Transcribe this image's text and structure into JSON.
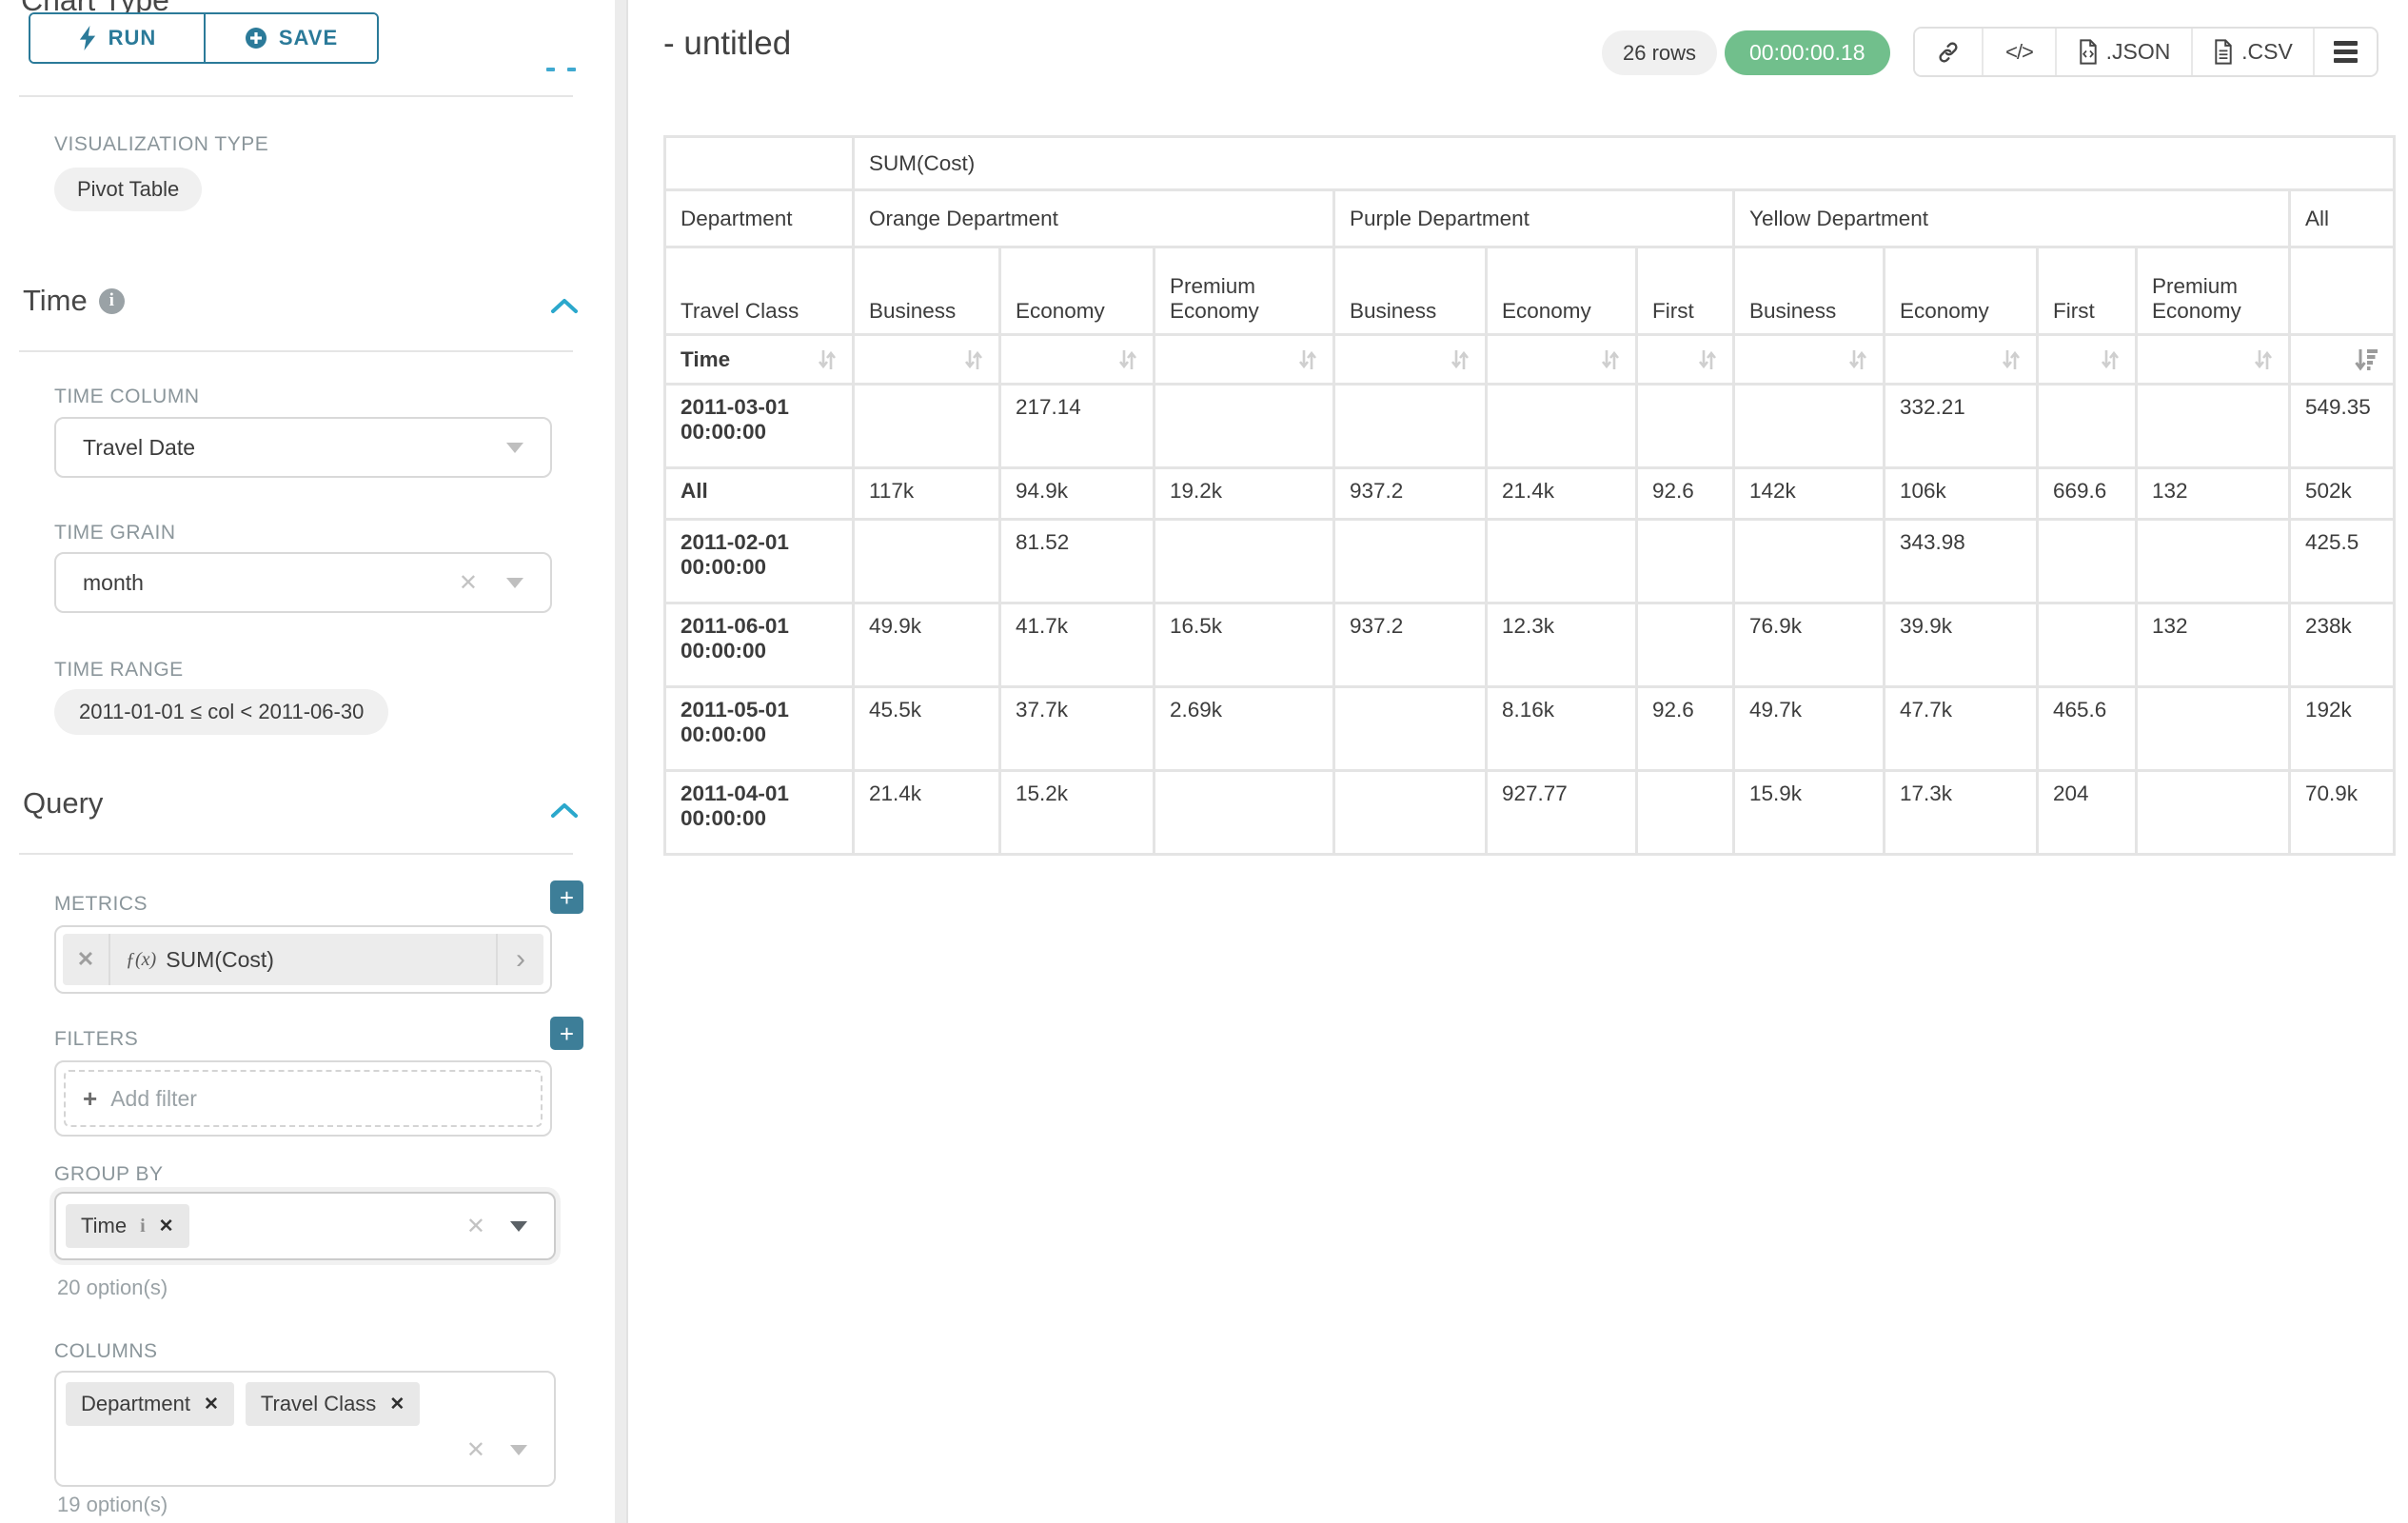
{
  "sidebar": {
    "run_label": "RUN",
    "save_label": "SAVE",
    "chart_type_heading": "Chart Type",
    "visualization_type_label": "VISUALIZATION TYPE",
    "visualization_type_value": "Pivot Table",
    "time_section": {
      "title": "Time",
      "time_column_label": "TIME COLUMN",
      "time_column_value": "Travel Date",
      "time_grain_label": "TIME GRAIN",
      "time_grain_value": "month",
      "time_range_label": "TIME RANGE",
      "time_range_value": "2011-01-01 ≤ col < 2011-06-30"
    },
    "query_section": {
      "title": "Query",
      "metrics_label": "METRICS",
      "metric_fx": "ƒ(x)",
      "metric_value": "SUM(Cost)",
      "filters_label": "FILTERS",
      "add_filter_label": "Add filter",
      "group_by_label": "GROUP BY",
      "group_by_tags": [
        "Time"
      ],
      "group_by_hint": "20 option(s)",
      "columns_label": "COLUMNS",
      "columns_tags": [
        "Department",
        "Travel Class"
      ],
      "columns_hint": "19 option(s)"
    }
  },
  "header": {
    "title": "- untitled",
    "row_count": "26 rows",
    "timer": "00:00:00.18",
    "export_json_label": ".JSON",
    "export_csv_label": ".CSV"
  },
  "pivot": {
    "metric_header": "SUM(Cost)",
    "corner_labels": [
      "Department",
      "Travel Class",
      "Time"
    ],
    "col_groups": [
      {
        "label": "Orange Department",
        "span": 3
      },
      {
        "label": "Purple Department",
        "span": 3
      },
      {
        "label": "Yellow Department",
        "span": 4
      },
      {
        "label": "All",
        "span": 1
      }
    ],
    "col_headers": [
      "Business",
      "Economy",
      "Premium Economy",
      "Business",
      "Economy",
      "First",
      "Business",
      "Economy",
      "First",
      "Premium Economy",
      ""
    ],
    "rows": [
      {
        "label": "2011-03-01 00:00:00",
        "cells": [
          "",
          "217.14",
          "",
          "",
          "",
          "",
          "",
          "332.21",
          "",
          "",
          "549.35"
        ]
      },
      {
        "label": "All",
        "cells": [
          "117k",
          "94.9k",
          "19.2k",
          "937.2",
          "21.4k",
          "92.6",
          "142k",
          "106k",
          "669.6",
          "132",
          "502k"
        ]
      },
      {
        "label": "2011-02-01 00:00:00",
        "cells": [
          "",
          "81.52",
          "",
          "",
          "",
          "",
          "",
          "343.98",
          "",
          "",
          "425.5"
        ]
      },
      {
        "label": "2011-06-01 00:00:00",
        "cells": [
          "49.9k",
          "41.7k",
          "16.5k",
          "937.2",
          "12.3k",
          "",
          "76.9k",
          "39.9k",
          "",
          "132",
          "238k"
        ]
      },
      {
        "label": "2011-05-01 00:00:00",
        "cells": [
          "45.5k",
          "37.7k",
          "2.69k",
          "",
          "8.16k",
          "92.6",
          "49.7k",
          "47.7k",
          "465.6",
          "",
          "192k"
        ]
      },
      {
        "label": "2011-04-01 00:00:00",
        "cells": [
          "21.4k",
          "15.2k",
          "",
          "",
          "927.77",
          "",
          "15.9k",
          "17.3k",
          "204",
          "",
          "70.9k"
        ]
      }
    ]
  }
}
